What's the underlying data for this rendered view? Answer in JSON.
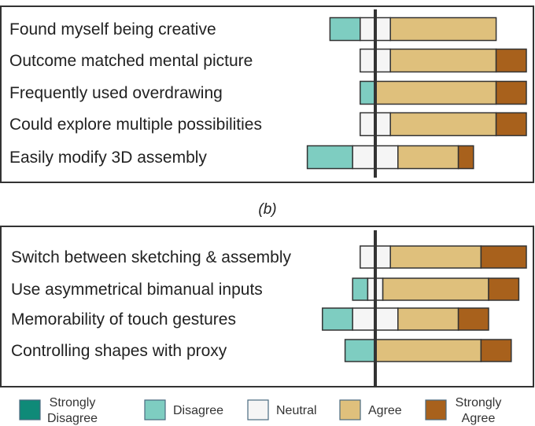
{
  "chart_data": [
    {
      "type": "bar",
      "subtype": "diverging-stacked",
      "categories": [
        "Found myself being creative",
        "Outcome matched mental picture",
        "Frequently used overdrawing",
        "Could explore multiple possibilities",
        "Easily modify 3D assembly"
      ],
      "series": [
        {
          "name": "Strongly Disagree",
          "values": [
            0,
            0,
            0,
            0,
            0
          ]
        },
        {
          "name": "Disagree",
          "values": [
            2,
            0,
            1,
            0,
            3
          ]
        },
        {
          "name": "Neutral",
          "values": [
            2,
            2,
            0,
            2,
            3
          ]
        },
        {
          "name": "Agree",
          "values": [
            7,
            7,
            8,
            7,
            4
          ]
        },
        {
          "name": "Strongly Agree",
          "values": [
            0,
            2,
            2,
            2,
            1
          ]
        }
      ]
    },
    {
      "type": "bar",
      "subtype": "diverging-stacked",
      "caption": "(b)",
      "categories": [
        "Switch between sketching & assembly",
        "Use asymmetrical bimanual inputs",
        "Memorability of touch gestures",
        "Controlling shapes with proxy"
      ],
      "series": [
        {
          "name": "Strongly Disagree",
          "values": [
            0,
            0,
            0,
            0
          ]
        },
        {
          "name": "Disagree",
          "values": [
            0,
            1,
            2,
            2
          ]
        },
        {
          "name": "Neutral",
          "values": [
            2,
            1,
            3,
            0
          ]
        },
        {
          "name": "Agree",
          "values": [
            6,
            7,
            4,
            7
          ]
        },
        {
          "name": "Strongly Agree",
          "values": [
            3,
            2,
            2,
            2
          ]
        }
      ]
    }
  ],
  "legend": {
    "placement": "bottom",
    "items": [
      {
        "line1": "Strongly",
        "line2": "Disagree",
        "color": "#0f8a78"
      },
      {
        "line1": "Disagree",
        "line2": "",
        "color": "#7ecdc1"
      },
      {
        "line1": "Neutral",
        "line2": "",
        "color": "#f5f5f5"
      },
      {
        "line1": "Agree",
        "line2": "",
        "color": "#dfc07c"
      },
      {
        "line1": "Strongly",
        "line2": "Agree",
        "color": "#a8611c"
      }
    ]
  }
}
